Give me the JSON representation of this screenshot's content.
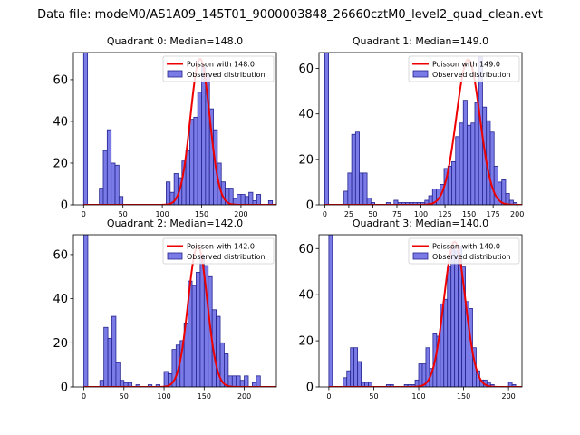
{
  "figure": {
    "suptitle": "Data file: modeM0/AS1A09_145T01_9000003848_26660cztM0_level2_quad_clean.evt"
  },
  "colors": {
    "hist_fill": "#7b7be8",
    "hist_edge": "#24248f",
    "poisson_line": "#ee0000",
    "axis": "#000000"
  },
  "chart_data": [
    {
      "type": "bar",
      "title": "Quadrant 0: Median=148.0",
      "xlim": [
        -13,
        245
      ],
      "ylim": [
        0,
        73
      ],
      "xticks": [
        0,
        50,
        100,
        150,
        200
      ],
      "yticks": [
        0,
        20,
        40,
        60
      ],
      "bin_width": 5,
      "legend": [
        "Poisson with 148.0",
        "Observed distribution"
      ],
      "poisson": {
        "mean": 148.0,
        "peak": 70
      },
      "bins": [
        [
          0,
          73
        ],
        [
          20,
          8
        ],
        [
          25,
          26
        ],
        [
          30,
          36
        ],
        [
          35,
          20
        ],
        [
          40,
          19
        ],
        [
          45,
          4
        ],
        [
          105,
          11
        ],
        [
          110,
          6
        ],
        [
          115,
          15
        ],
        [
          120,
          13
        ],
        [
          125,
          21
        ],
        [
          130,
          26
        ],
        [
          135,
          41
        ],
        [
          140,
          42
        ],
        [
          145,
          54
        ],
        [
          150,
          66
        ],
        [
          155,
          63
        ],
        [
          160,
          46
        ],
        [
          165,
          36
        ],
        [
          170,
          20
        ],
        [
          175,
          11
        ],
        [
          180,
          8
        ],
        [
          185,
          8
        ],
        [
          190,
          3
        ],
        [
          195,
          5
        ],
        [
          200,
          5
        ],
        [
          205,
          4
        ],
        [
          210,
          6
        ],
        [
          215,
          2
        ],
        [
          220,
          5
        ],
        [
          235,
          2
        ]
      ]
    },
    {
      "type": "bar",
      "title": "Quadrant 1: Median=149.0",
      "xlim": [
        -6,
        205
      ],
      "ylim": [
        0,
        67
      ],
      "xticks": [
        0,
        25,
        50,
        75,
        100,
        125,
        150,
        175,
        200
      ],
      "yticks": [
        0,
        20,
        40,
        60
      ],
      "bin_width": 4,
      "legend": [
        "Poisson with 149.0",
        "Observed distribution"
      ],
      "poisson": {
        "mean": 149.0,
        "peak": 64
      },
      "bins": [
        [
          0,
          67
        ],
        [
          20,
          6
        ],
        [
          24,
          14
        ],
        [
          28,
          31
        ],
        [
          32,
          32
        ],
        [
          36,
          14
        ],
        [
          40,
          14
        ],
        [
          44,
          3
        ],
        [
          48,
          1
        ],
        [
          64,
          1
        ],
        [
          72,
          2
        ],
        [
          76,
          1
        ],
        [
          80,
          1
        ],
        [
          84,
          1
        ],
        [
          88,
          1
        ],
        [
          92,
          1
        ],
        [
          96,
          1
        ],
        [
          100,
          1
        ],
        [
          104,
          2
        ],
        [
          108,
          4
        ],
        [
          112,
          7
        ],
        [
          116,
          7
        ],
        [
          120,
          9
        ],
        [
          124,
          16
        ],
        [
          128,
          17
        ],
        [
          132,
          19
        ],
        [
          136,
          30
        ],
        [
          140,
          36
        ],
        [
          144,
          46
        ],
        [
          148,
          35
        ],
        [
          152,
          36
        ],
        [
          156,
          45
        ],
        [
          160,
          65
        ],
        [
          164,
          43
        ],
        [
          168,
          37
        ],
        [
          172,
          32
        ],
        [
          176,
          17
        ],
        [
          180,
          10
        ],
        [
          184,
          11
        ],
        [
          188,
          5
        ],
        [
          192,
          2
        ],
        [
          196,
          1
        ]
      ]
    },
    {
      "type": "bar",
      "title": "Quadrant 2: Median=142.0",
      "xlim": [
        -13,
        240
      ],
      "ylim": [
        0,
        69
      ],
      "xticks": [
        0,
        50,
        100,
        150,
        200
      ],
      "yticks": [
        0,
        20,
        40,
        60
      ],
      "bin_width": 5,
      "legend": [
        "Poisson with 142.0",
        "Observed distribution"
      ],
      "poisson": {
        "mean": 142.0,
        "peak": 64
      },
      "bins": [
        [
          0,
          69
        ],
        [
          20,
          3
        ],
        [
          25,
          27
        ],
        [
          30,
          22
        ],
        [
          35,
          32
        ],
        [
          40,
          11
        ],
        [
          45,
          3
        ],
        [
          50,
          2
        ],
        [
          55,
          2
        ],
        [
          65,
          1
        ],
        [
          80,
          1
        ],
        [
          90,
          1
        ],
        [
          100,
          7
        ],
        [
          105,
          6
        ],
        [
          110,
          17
        ],
        [
          115,
          19
        ],
        [
          120,
          21
        ],
        [
          125,
          29
        ],
        [
          130,
          48
        ],
        [
          135,
          46
        ],
        [
          140,
          52
        ],
        [
          145,
          60
        ],
        [
          150,
          55
        ],
        [
          155,
          50
        ],
        [
          160,
          35
        ],
        [
          165,
          32
        ],
        [
          170,
          20
        ],
        [
          175,
          15
        ],
        [
          180,
          5
        ],
        [
          185,
          5
        ],
        [
          190,
          5
        ],
        [
          195,
          3
        ],
        [
          200,
          5
        ],
        [
          210,
          2
        ],
        [
          215,
          5
        ]
      ]
    },
    {
      "type": "bar",
      "title": "Quadrant 3: Median=140.0",
      "xlim": [
        -11,
        215
      ],
      "ylim": [
        0,
        66
      ],
      "xticks": [
        0,
        50,
        100,
        150,
        200
      ],
      "yticks": [
        0,
        20,
        40,
        60
      ],
      "bin_width": 4,
      "legend": [
        "Poisson with 140.0",
        "Observed distribution"
      ],
      "poisson": {
        "mean": 140.0,
        "peak": 63
      },
      "bins": [
        [
          0,
          66
        ],
        [
          16,
          4
        ],
        [
          20,
          7
        ],
        [
          24,
          17
        ],
        [
          28,
          17
        ],
        [
          32,
          11
        ],
        [
          36,
          2
        ],
        [
          40,
          2
        ],
        [
          44,
          2
        ],
        [
          64,
          1
        ],
        [
          68,
          1
        ],
        [
          84,
          1
        ],
        [
          88,
          1
        ],
        [
          92,
          1
        ],
        [
          96,
          3
        ],
        [
          100,
          10
        ],
        [
          104,
          10
        ],
        [
          108,
          17
        ],
        [
          112,
          8
        ],
        [
          116,
          23
        ],
        [
          120,
          22
        ],
        [
          124,
          36
        ],
        [
          128,
          38
        ],
        [
          132,
          52
        ],
        [
          136,
          60
        ],
        [
          140,
          59
        ],
        [
          144,
          61
        ],
        [
          148,
          52
        ],
        [
          152,
          37
        ],
        [
          156,
          34
        ],
        [
          160,
          17
        ],
        [
          164,
          7
        ],
        [
          168,
          3
        ],
        [
          172,
          3
        ],
        [
          176,
          2
        ],
        [
          180,
          1
        ],
        [
          200,
          2
        ],
        [
          204,
          1
        ]
      ]
    }
  ]
}
